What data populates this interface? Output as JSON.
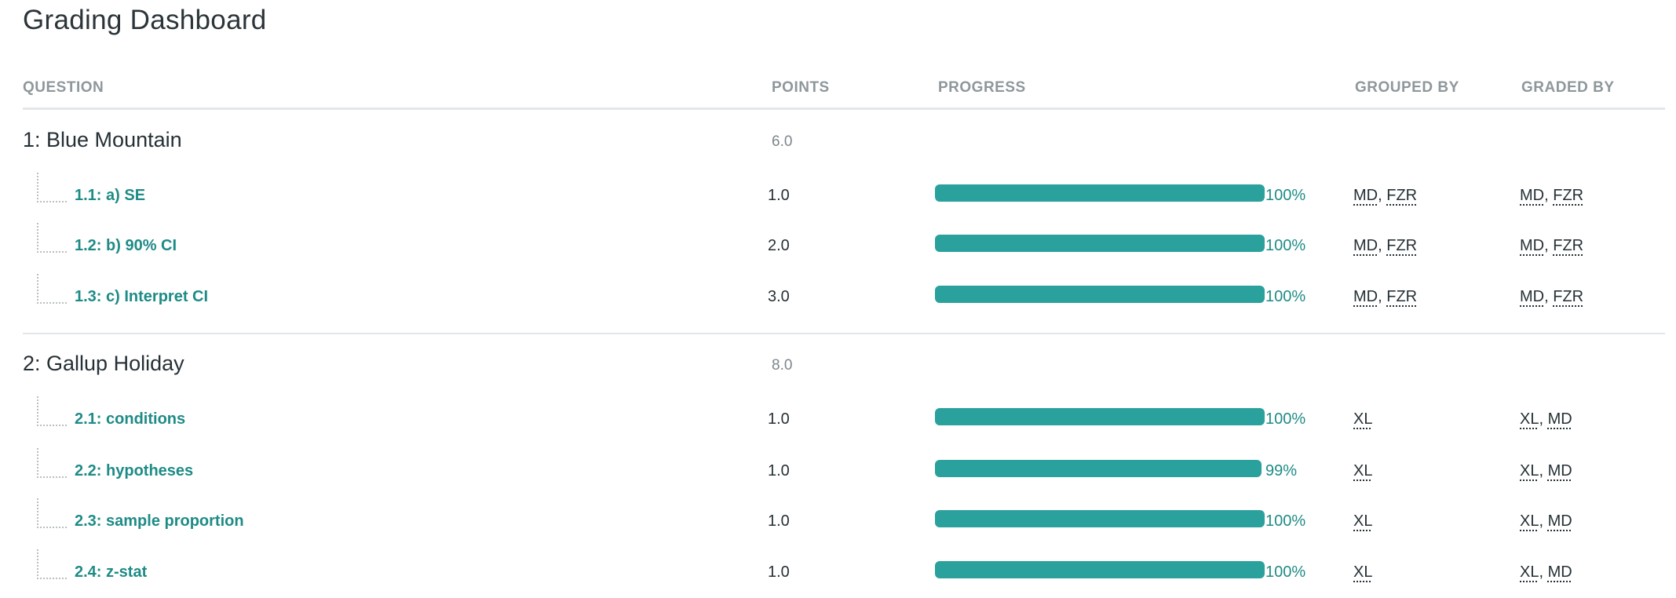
{
  "page": {
    "title": "Grading Dashboard"
  },
  "columns": {
    "question": "QUESTION",
    "points": "POINTS",
    "progress": "PROGRESS",
    "grouped_by": "GROUPED BY",
    "graded_by": "GRADED BY"
  },
  "groups": [
    {
      "name": "1: Blue Mountain",
      "points": "6.0",
      "items": [
        {
          "label": "1.1: a) SE",
          "points": "1.0",
          "progress_pct": 100,
          "progress_label": "100%",
          "grouped_by": [
            "MD",
            "FZR"
          ],
          "graded_by": [
            "MD",
            "FZR"
          ]
        },
        {
          "label": "1.2: b) 90% CI",
          "points": "2.0",
          "progress_pct": 100,
          "progress_label": "100%",
          "grouped_by": [
            "MD",
            "FZR"
          ],
          "graded_by": [
            "MD",
            "FZR"
          ]
        },
        {
          "label": "1.3: c) Interpret CI",
          "points": "3.0",
          "progress_pct": 100,
          "progress_label": "100%",
          "grouped_by": [
            "MD",
            "FZR"
          ],
          "graded_by": [
            "MD",
            "FZR"
          ]
        }
      ]
    },
    {
      "name": "2: Gallup Holiday",
      "points": "8.0",
      "items": [
        {
          "label": "2.1: conditions",
          "points": "1.0",
          "progress_pct": 100,
          "progress_label": "100%",
          "grouped_by": [
            "XL"
          ],
          "graded_by": [
            "XL",
            "MD"
          ]
        },
        {
          "label": "2.2: hypotheses",
          "points": "1.0",
          "progress_pct": 99,
          "progress_label": "99%",
          "grouped_by": [
            "XL"
          ],
          "graded_by": [
            "XL",
            "MD"
          ]
        },
        {
          "label": "2.3: sample proportion",
          "points": "1.0",
          "progress_pct": 100,
          "progress_label": "100%",
          "grouped_by": [
            "XL"
          ],
          "graded_by": [
            "XL",
            "MD"
          ]
        },
        {
          "label": "2.4: z-stat",
          "points": "1.0",
          "progress_pct": 100,
          "progress_label": "100%",
          "grouped_by": [
            "XL"
          ],
          "graded_by": [
            "XL",
            "MD"
          ]
        }
      ]
    }
  ],
  "colors": {
    "accent": "#2aa19c",
    "link": "#1e8b86",
    "header_text": "#8e979b",
    "divider": "#e3e6e8"
  }
}
